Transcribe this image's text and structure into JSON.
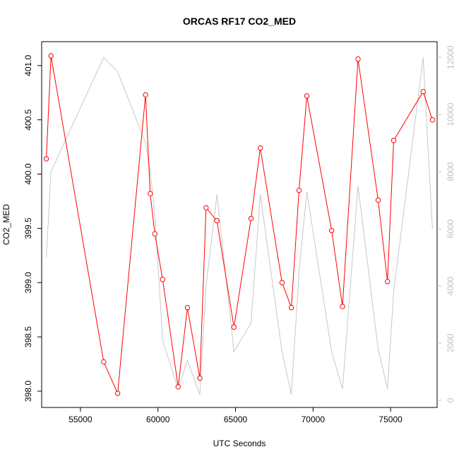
{
  "chart_data": {
    "type": "line",
    "title": "ORCAS RF17 CO2_MED",
    "xlabel": "UTC Seconds",
    "ylabel": "CO2_MED",
    "xlim": [
      52500,
      78000
    ],
    "ylim": [
      397.85,
      401.22
    ],
    "y2lim": [
      -250,
      12550
    ],
    "x_ticks": [
      55000,
      60000,
      65000,
      70000,
      75000
    ],
    "y_ticks": [
      398.0,
      398.5,
      399.0,
      399.5,
      400.0,
      400.5,
      401.0
    ],
    "y2_ticks": [
      0,
      2000,
      4000,
      6000,
      8000,
      10000,
      12000
    ],
    "grid": false,
    "series": [
      {
        "name": "CO2_MED",
        "axis": "left",
        "color": "#ff0000",
        "marker": "open-circle",
        "points": [
          [
            52800,
            400.14
          ],
          [
            53100,
            401.09
          ],
          [
            56500,
            398.27
          ],
          [
            57400,
            397.98
          ],
          [
            59200,
            400.73
          ],
          [
            59500,
            399.82
          ],
          [
            59800,
            399.45
          ],
          [
            60300,
            399.03
          ],
          [
            61300,
            398.04
          ],
          [
            61900,
            398.77
          ],
          [
            62700,
            398.12
          ],
          [
            63100,
            399.69
          ],
          [
            63800,
            399.57
          ],
          [
            64900,
            398.59
          ],
          [
            66000,
            399.59
          ],
          [
            66600,
            400.24
          ],
          [
            68000,
            399.0
          ],
          [
            68600,
            398.77
          ],
          [
            69100,
            399.85
          ],
          [
            69600,
            400.72
          ],
          [
            71200,
            399.48
          ],
          [
            71900,
            398.78
          ],
          [
            72900,
            401.06
          ],
          [
            74200,
            399.76
          ],
          [
            74800,
            399.01
          ],
          [
            75200,
            400.31
          ],
          [
            77100,
            400.76
          ],
          [
            77700,
            400.5
          ]
        ]
      },
      {
        "axis": "right",
        "color": "#c8c8c8",
        "marker": "none",
        "points": [
          [
            52800,
            5000
          ],
          [
            53100,
            8000
          ],
          [
            56500,
            12000
          ],
          [
            57400,
            11500
          ],
          [
            59200,
            9000
          ],
          [
            59500,
            8000
          ],
          [
            59800,
            6500
          ],
          [
            60300,
            2100
          ],
          [
            61300,
            400
          ],
          [
            61900,
            1400
          ],
          [
            62700,
            200
          ],
          [
            63100,
            4000
          ],
          [
            63800,
            7200
          ],
          [
            64900,
            1700
          ],
          [
            66000,
            2700
          ],
          [
            66600,
            7200
          ],
          [
            68000,
            1700
          ],
          [
            68600,
            200
          ],
          [
            69100,
            4500
          ],
          [
            69600,
            7300
          ],
          [
            71200,
            1700
          ],
          [
            71900,
            400
          ],
          [
            72900,
            7500
          ],
          [
            74200,
            1800
          ],
          [
            74800,
            400
          ],
          [
            75200,
            3800
          ],
          [
            77100,
            12000
          ],
          [
            77700,
            6000
          ]
        ]
      }
    ]
  }
}
